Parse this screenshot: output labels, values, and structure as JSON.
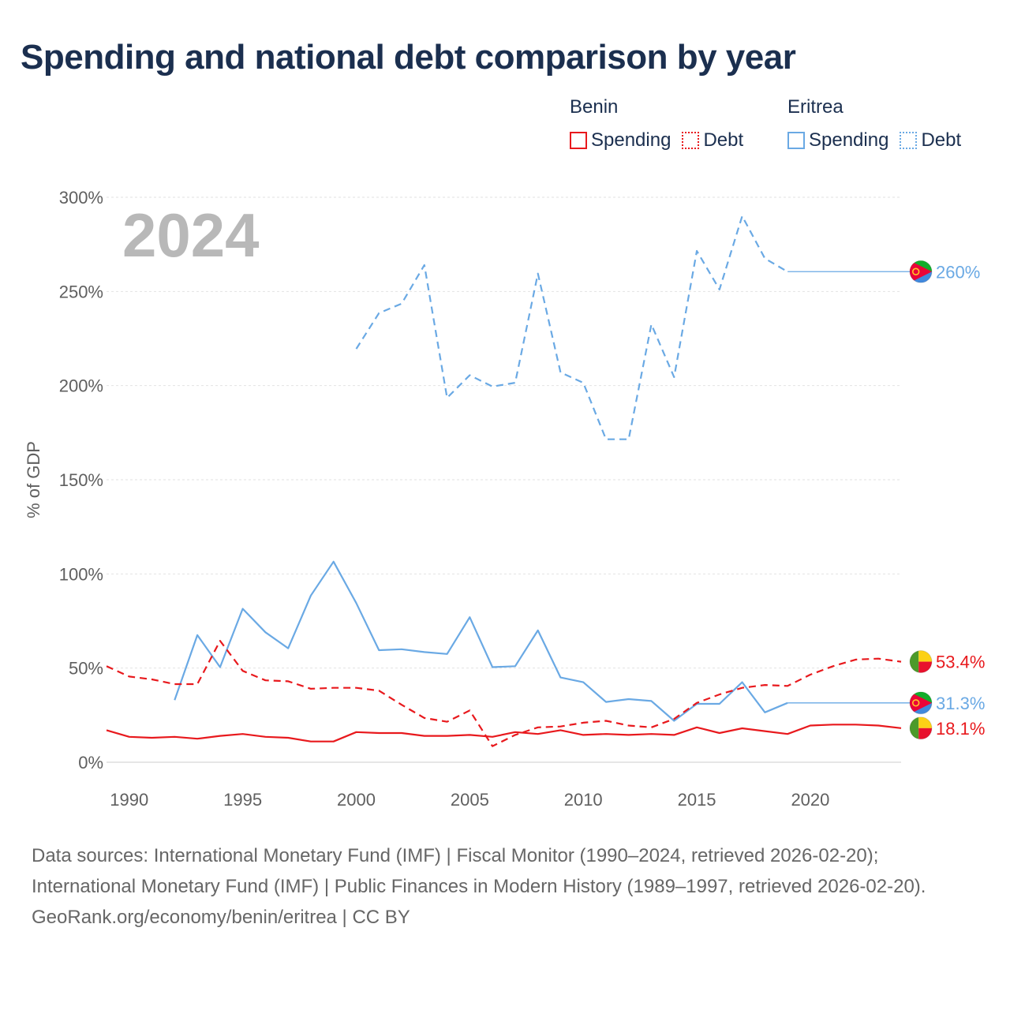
{
  "title": "Spending and national debt comparison by year",
  "legend": {
    "groups": [
      {
        "name": "Benin",
        "color": "#e8191d",
        "items": [
          {
            "label": "Spending",
            "style": "solid"
          },
          {
            "label": "Debt",
            "style": "dotted"
          }
        ]
      },
      {
        "name": "Eritrea",
        "color": "#6aa9e4",
        "items": [
          {
            "label": "Spending",
            "style": "solid"
          },
          {
            "label": "Debt",
            "style": "dotted"
          }
        ]
      }
    ]
  },
  "footer": {
    "sources": "Data sources: International Monetary Fund (IMF) | Fiscal Monitor (1990–2024, retrieved 2026-02-20); International Monetary Fund (IMF) | Public Finances in Modern History (1989–1997, retrieved 2026-02-20).",
    "credit": "GeoRank.org/economy/benin/eritrea | CC BY"
  },
  "chart_data": {
    "type": "line",
    "title": "Spending and national debt comparison by year",
    "year_label": "2024",
    "ylabel": "% of GDP",
    "xlabel": "",
    "xlim": [
      1989,
      2024
    ],
    "ylim": [
      0,
      300
    ],
    "x_ticks": [
      1990,
      1995,
      2000,
      2005,
      2010,
      2015,
      2020
    ],
    "y_ticks": [
      0,
      50,
      100,
      150,
      200,
      250,
      300
    ],
    "y_tick_labels": [
      "0%",
      "50%",
      "100%",
      "150%",
      "200%",
      "250%",
      "300%"
    ],
    "grid": true,
    "series": [
      {
        "name": "Eritrea Debt",
        "country": "Eritrea",
        "measure": "Debt",
        "color": "#6aa9e4",
        "dash": "dashed",
        "x": [
          2000,
          2001,
          2002,
          2003,
          2004,
          2005,
          2006,
          2007,
          2008,
          2009,
          2010,
          2011,
          2012,
          2013,
          2014,
          2015,
          2016,
          2017,
          2018,
          2019
        ],
        "values": [
          219.5,
          238.5,
          243.5,
          264,
          193.5,
          205.5,
          199.5,
          201.5,
          259.5,
          207,
          201.5,
          171.5,
          171.5,
          232.5,
          204.5,
          271.5,
          251,
          290,
          267.5,
          260.5
        ],
        "carry_to": 2024,
        "end_label": "260%"
      },
      {
        "name": "Eritrea Spending",
        "country": "Eritrea",
        "measure": "Spending",
        "color": "#6aa9e4",
        "dash": "solid",
        "x": [
          1992,
          1993,
          1994,
          1995,
          1996,
          1997,
          1998,
          1999,
          2000,
          2001,
          2002,
          2003,
          2004,
          2005,
          2006,
          2007,
          2008,
          2009,
          2010,
          2011,
          2012,
          2013,
          2014,
          2015,
          2016,
          2017,
          2018,
          2019
        ],
        "values": [
          33,
          67.5,
          50.5,
          81.5,
          69,
          60.5,
          88.5,
          106.5,
          84.5,
          59.5,
          60,
          58.5,
          57.5,
          77,
          50.5,
          51,
          70,
          45,
          42.5,
          32,
          33.5,
          32.5,
          22,
          31,
          31,
          42.5,
          26.5,
          31.5
        ],
        "carry_to": 2024,
        "end_label": "31.3%"
      },
      {
        "name": "Benin Debt",
        "country": "Benin",
        "measure": "Debt",
        "color": "#e8191d",
        "dash": "dashed",
        "x": [
          1989,
          1990,
          1991,
          1992,
          1993,
          1994,
          1995,
          1996,
          1997,
          1998,
          1999,
          2000,
          2001,
          2002,
          2003,
          2004,
          2005,
          2006,
          2007,
          2008,
          2009,
          2010,
          2011,
          2012,
          2013,
          2014,
          2015,
          2016,
          2017,
          2018,
          2019,
          2020,
          2021,
          2022,
          2023,
          2024
        ],
        "values": [
          51,
          45.5,
          44,
          41.5,
          41.5,
          64.5,
          48.5,
          43.5,
          43,
          39,
          39.5,
          39.5,
          38,
          30.5,
          23.5,
          21.5,
          27.5,
          8.5,
          14.5,
          18.5,
          19,
          21,
          22,
          19.5,
          18.5,
          23,
          31.5,
          36,
          39.5,
          41,
          40.5,
          46.5,
          51,
          54.5,
          55,
          53.4
        ],
        "end_label": "53.4%"
      },
      {
        "name": "Benin Spending",
        "country": "Benin",
        "measure": "Spending",
        "color": "#e8191d",
        "dash": "solid",
        "x": [
          1989,
          1990,
          1991,
          1992,
          1993,
          1994,
          1995,
          1996,
          1997,
          1998,
          1999,
          2000,
          2001,
          2002,
          2003,
          2004,
          2005,
          2006,
          2007,
          2008,
          2009,
          2010,
          2011,
          2012,
          2013,
          2014,
          2015,
          2016,
          2017,
          2018,
          2019,
          2020,
          2021,
          2022,
          2023,
          2024
        ],
        "values": [
          17,
          13.5,
          13,
          13.5,
          12.5,
          14,
          15,
          13.5,
          13,
          11,
          11,
          16,
          15.5,
          15.5,
          14,
          14,
          14.5,
          13.5,
          16,
          15,
          17,
          14.5,
          15,
          14.5,
          15,
          14.5,
          18.5,
          15.5,
          18,
          16.5,
          15,
          19.5,
          20,
          20,
          19.5,
          18.1
        ],
        "end_label": "18.1%"
      }
    ],
    "colors": {
      "benin": "#e8191d",
      "eritrea": "#6aa9e4",
      "axis_text": "#5f5f5f",
      "grid": "#e2e2e2",
      "year": "#b8b8b8"
    },
    "flags": {
      "benin": {
        "green": "#4c9a2a",
        "yellow": "#fcd116",
        "red": "#e8112d"
      },
      "eritrea": {
        "green": "#12ad2b",
        "red": "#ea0437",
        "blue": "#4189dd",
        "gold": "#ffc726"
      }
    }
  }
}
